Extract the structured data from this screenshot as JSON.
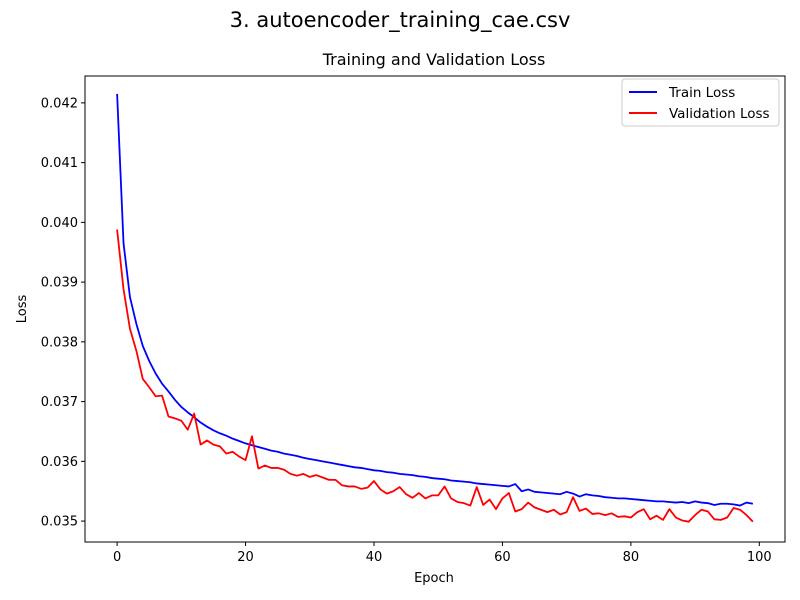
{
  "figure": {
    "suptitle": "3. autoencoder_training_cae.csv"
  },
  "chart_data": {
    "type": "line",
    "title": "Training and Validation Loss",
    "xlabel": "Epoch",
    "ylabel": "Loss",
    "xlim": [
      -5,
      104
    ],
    "ylim": [
      0.03465,
      0.04245
    ],
    "x_ticks": [
      0,
      20,
      40,
      60,
      80,
      100
    ],
    "x_tick_labels": [
      "0",
      "20",
      "40",
      "60",
      "80",
      "100"
    ],
    "y_ticks": [
      0.035,
      0.036,
      0.037,
      0.038,
      0.039,
      0.04,
      0.041,
      0.042
    ],
    "y_tick_labels": [
      "0.035",
      "0.036",
      "0.037",
      "0.038",
      "0.039",
      "0.040",
      "0.041",
      "0.042"
    ],
    "grid": false,
    "legend_position": "top-right",
    "x": [
      0,
      1,
      2,
      3,
      4,
      5,
      6,
      7,
      8,
      9,
      10,
      11,
      12,
      13,
      14,
      15,
      16,
      17,
      18,
      19,
      20,
      21,
      22,
      23,
      24,
      25,
      26,
      27,
      28,
      29,
      30,
      31,
      32,
      33,
      34,
      35,
      36,
      37,
      38,
      39,
      40,
      41,
      42,
      43,
      44,
      45,
      46,
      47,
      48,
      49,
      50,
      51,
      52,
      53,
      54,
      55,
      56,
      57,
      58,
      59,
      60,
      61,
      62,
      63,
      64,
      65,
      66,
      67,
      68,
      69,
      70,
      71,
      72,
      73,
      74,
      75,
      76,
      77,
      78,
      79,
      80,
      81,
      82,
      83,
      84,
      85,
      86,
      87,
      88,
      89,
      90,
      91,
      92,
      93,
      94,
      95,
      96,
      97,
      98,
      99
    ],
    "series": [
      {
        "name": "Train Loss",
        "color": "#0000ff",
        "values": [
          0.04215,
          0.03965,
          0.03875,
          0.0383,
          0.03793,
          0.03768,
          0.03747,
          0.0373,
          0.03717,
          0.03703,
          0.03691,
          0.03682,
          0.03674,
          0.03665,
          0.03658,
          0.03652,
          0.03647,
          0.03643,
          0.03638,
          0.03634,
          0.0363,
          0.03627,
          0.03624,
          0.03621,
          0.03618,
          0.03616,
          0.03613,
          0.03611,
          0.03609,
          0.03606,
          0.03604,
          0.03602,
          0.036,
          0.03598,
          0.03596,
          0.03594,
          0.03592,
          0.0359,
          0.03589,
          0.03587,
          0.03585,
          0.03584,
          0.03582,
          0.03581,
          0.03579,
          0.03578,
          0.03577,
          0.03575,
          0.03574,
          0.03572,
          0.03571,
          0.0357,
          0.03568,
          0.03567,
          0.03566,
          0.03565,
          0.03563,
          0.03562,
          0.03561,
          0.0356,
          0.03559,
          0.03558,
          0.03562,
          0.0355,
          0.03553,
          0.03549,
          0.03548,
          0.03547,
          0.03546,
          0.03545,
          0.03549,
          0.03546,
          0.03541,
          0.03545,
          0.03543,
          0.03542,
          0.0354,
          0.03539,
          0.03538,
          0.03538,
          0.03537,
          0.03536,
          0.03535,
          0.03534,
          0.03533,
          0.03533,
          0.03532,
          0.03531,
          0.03532,
          0.0353,
          0.03533,
          0.03531,
          0.0353,
          0.03527,
          0.03529,
          0.03529,
          0.03528,
          0.03526,
          0.03531,
          0.03529
        ]
      },
      {
        "name": "Validation Loss",
        "color": "#ff0000",
        "values": [
          0.03988,
          0.03888,
          0.03822,
          0.03785,
          0.03738,
          0.03724,
          0.03709,
          0.0371,
          0.03675,
          0.03672,
          0.03668,
          0.03653,
          0.0368,
          0.03628,
          0.03635,
          0.03628,
          0.03625,
          0.03613,
          0.03616,
          0.03608,
          0.03602,
          0.03642,
          0.03588,
          0.03593,
          0.03589,
          0.03589,
          0.03586,
          0.03579,
          0.03576,
          0.03579,
          0.03574,
          0.03577,
          0.03573,
          0.03569,
          0.03569,
          0.0356,
          0.03558,
          0.03558,
          0.03554,
          0.03556,
          0.03567,
          0.03553,
          0.03546,
          0.0355,
          0.03557,
          0.03545,
          0.03539,
          0.03547,
          0.03538,
          0.03543,
          0.03543,
          0.03558,
          0.03538,
          0.03532,
          0.0353,
          0.03526,
          0.03557,
          0.03527,
          0.03536,
          0.0352,
          0.03538,
          0.03547,
          0.03516,
          0.0352,
          0.03531,
          0.03523,
          0.03519,
          0.03515,
          0.03519,
          0.03511,
          0.03515,
          0.0354,
          0.03517,
          0.03521,
          0.03512,
          0.03513,
          0.0351,
          0.03513,
          0.03507,
          0.03508,
          0.03506,
          0.03515,
          0.0352,
          0.03503,
          0.03509,
          0.03502,
          0.0352,
          0.03506,
          0.03501,
          0.03499,
          0.0351,
          0.03519,
          0.03516,
          0.03503,
          0.03502,
          0.03506,
          0.03522,
          0.03519,
          0.0351,
          0.03499
        ]
      }
    ]
  }
}
